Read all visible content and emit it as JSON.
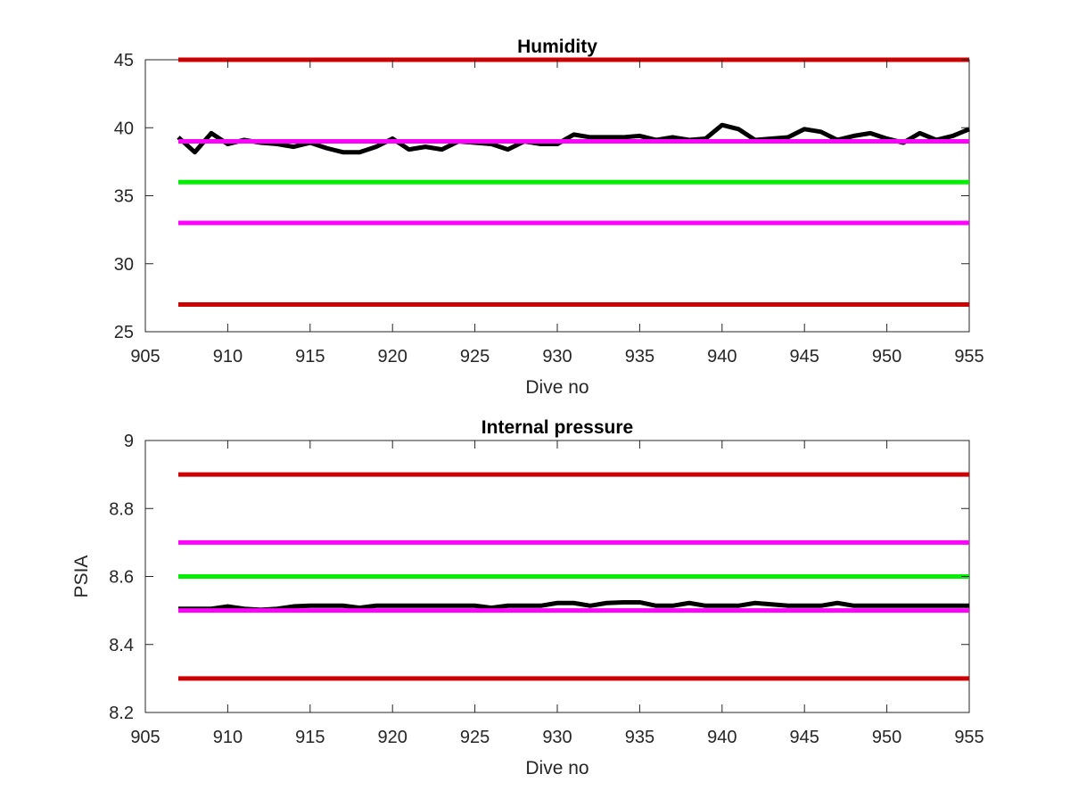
{
  "chart_data": [
    {
      "type": "line",
      "title": "Humidity",
      "xlabel": "Dive no",
      "ylabel": "",
      "xlim": [
        905,
        955
      ],
      "ylim": [
        25,
        45
      ],
      "xticks": [
        905,
        910,
        915,
        920,
        925,
        930,
        935,
        940,
        945,
        950,
        955
      ],
      "yticks": [
        25,
        30,
        35,
        40,
        45
      ],
      "xtick_labels": [
        "905",
        "910",
        "915",
        "920",
        "925",
        "930",
        "935",
        "940",
        "945",
        "950",
        "955"
      ],
      "ytick_labels": [
        "25",
        "30",
        "35",
        "40",
        "45"
      ],
      "grid": false,
      "series": [
        {
          "color": "#000000",
          "x": [
            907,
            908,
            909,
            910,
            911,
            912,
            913,
            914,
            915,
            916,
            917,
            918,
            919,
            920,
            921,
            922,
            923,
            924,
            925,
            926,
            927,
            928,
            929,
            930,
            931,
            932,
            933,
            934,
            935,
            936,
            937,
            938,
            939,
            940,
            941,
            942,
            943,
            944,
            945,
            946,
            947,
            948,
            949,
            950,
            951,
            952,
            953,
            954,
            955
          ],
          "y": [
            39.3,
            38.2,
            39.6,
            38.8,
            39.1,
            38.9,
            38.8,
            38.6,
            38.9,
            38.5,
            38.2,
            38.2,
            38.6,
            39.2,
            38.4,
            38.6,
            38.4,
            39.0,
            38.9,
            38.8,
            38.4,
            39.0,
            38.8,
            38.8,
            39.5,
            39.3,
            39.3,
            39.3,
            39.4,
            39.1,
            39.3,
            39.1,
            39.2,
            40.2,
            39.9,
            39.1,
            39.2,
            39.3,
            39.9,
            39.7,
            39.1,
            39.4,
            39.6,
            39.2,
            38.9,
            39.6,
            39.1,
            39.4,
            39.9
          ]
        },
        {
          "color": "#cc0000",
          "x": [
            907,
            955
          ],
          "y": [
            45,
            45
          ]
        },
        {
          "color": "#ff00ff",
          "x": [
            907,
            955
          ],
          "y": [
            39,
            39
          ]
        },
        {
          "color": "#00ee00",
          "x": [
            907,
            955
          ],
          "y": [
            36,
            36
          ]
        },
        {
          "color": "#ff00ff",
          "x": [
            907,
            955
          ],
          "y": [
            33,
            33
          ]
        },
        {
          "color": "#cc0000",
          "x": [
            907,
            955
          ],
          "y": [
            27,
            27
          ]
        }
      ]
    },
    {
      "type": "line",
      "title": "Internal pressure",
      "xlabel": "Dive no",
      "ylabel": "PSIA",
      "xlim": [
        905,
        955
      ],
      "ylim": [
        8.2,
        9.0
      ],
      "xticks": [
        905,
        910,
        915,
        920,
        925,
        930,
        935,
        940,
        945,
        950,
        955
      ],
      "yticks": [
        8.2,
        8.4,
        8.6,
        8.8,
        9.0
      ],
      "xtick_labels": [
        "905",
        "910",
        "915",
        "920",
        "925",
        "930",
        "935",
        "940",
        "945",
        "950",
        "955"
      ],
      "ytick_labels": [
        "8.2",
        "8.4",
        "8.6",
        "8.8",
        "9"
      ],
      "grid": false,
      "series": [
        {
          "color": "#000000",
          "x": [
            907,
            908,
            909,
            910,
            911,
            912,
            913,
            914,
            915,
            916,
            917,
            918,
            919,
            920,
            921,
            922,
            923,
            924,
            925,
            926,
            927,
            928,
            929,
            930,
            931,
            932,
            933,
            934,
            935,
            936,
            937,
            938,
            939,
            940,
            941,
            942,
            943,
            944,
            945,
            946,
            947,
            948,
            949,
            950,
            951,
            952,
            953,
            954,
            955
          ],
          "y": [
            8.505,
            8.505,
            8.505,
            8.512,
            8.505,
            8.502,
            8.505,
            8.512,
            8.514,
            8.514,
            8.514,
            8.508,
            8.514,
            8.514,
            8.514,
            8.514,
            8.514,
            8.514,
            8.514,
            8.508,
            8.514,
            8.514,
            8.514,
            8.522,
            8.522,
            8.514,
            8.522,
            8.524,
            8.524,
            8.514,
            8.514,
            8.522,
            8.514,
            8.514,
            8.514,
            8.522,
            8.518,
            8.514,
            8.514,
            8.514,
            8.522,
            8.514,
            8.514,
            8.514,
            8.514,
            8.514,
            8.514,
            8.514,
            8.514
          ]
        },
        {
          "color": "#cc0000",
          "x": [
            907,
            955
          ],
          "y": [
            8.9,
            8.9
          ]
        },
        {
          "color": "#ff00ff",
          "x": [
            907,
            955
          ],
          "y": [
            8.7,
            8.7
          ]
        },
        {
          "color": "#00ee00",
          "x": [
            907,
            955
          ],
          "y": [
            8.6,
            8.6
          ]
        },
        {
          "color": "#ff00ff",
          "x": [
            907,
            955
          ],
          "y": [
            8.5,
            8.5
          ]
        },
        {
          "color": "#cc0000",
          "x": [
            907,
            955
          ],
          "y": [
            8.3,
            8.3
          ]
        }
      ]
    }
  ]
}
